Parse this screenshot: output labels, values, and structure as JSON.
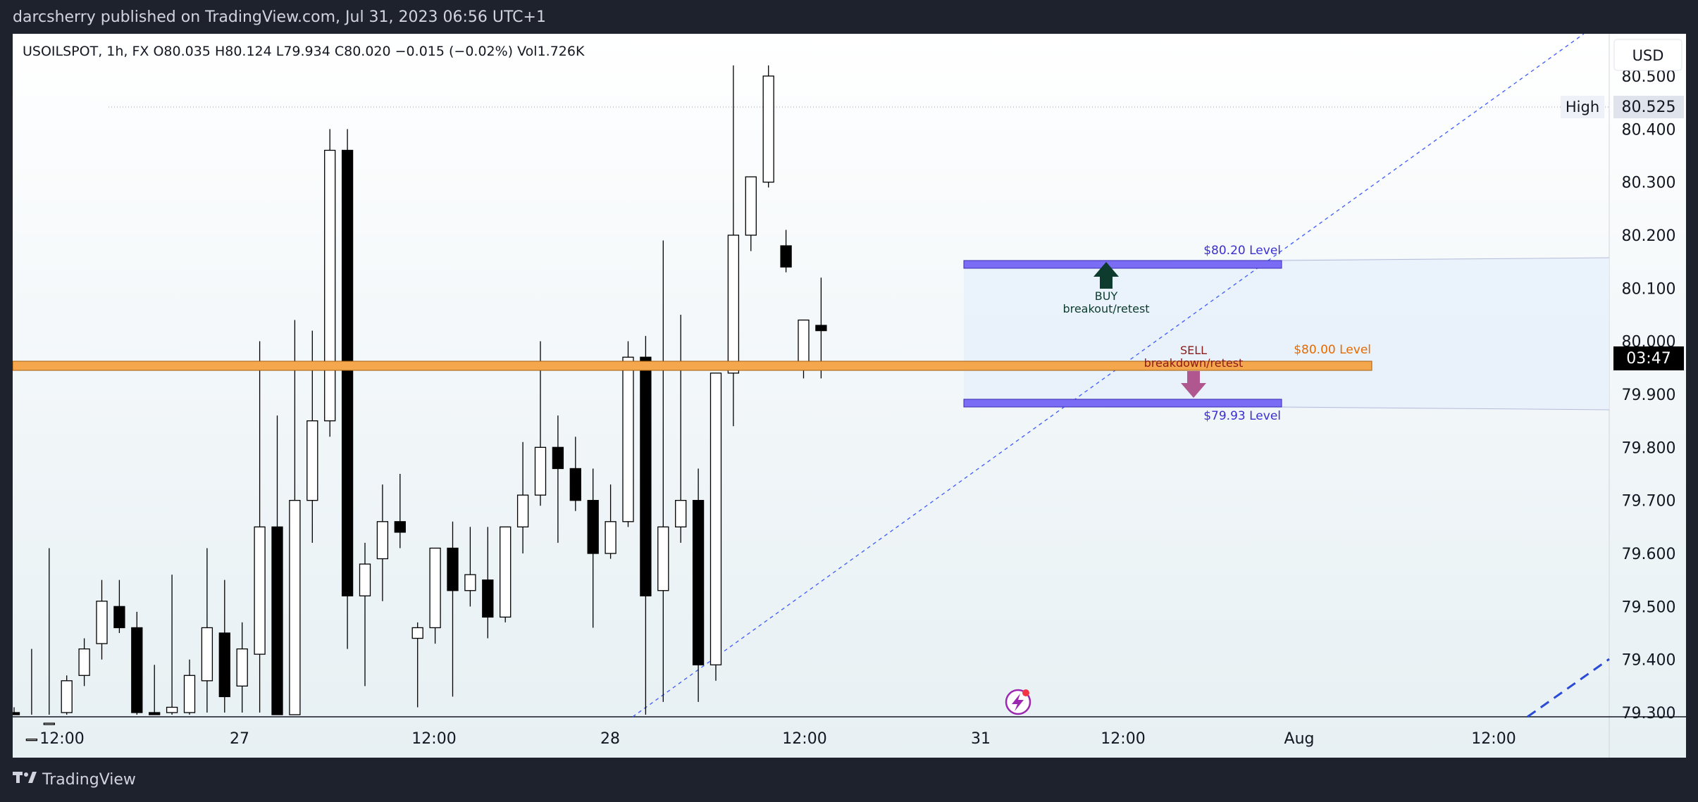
{
  "header": {
    "publisher": "darcsherry published on TradingView.com, Jul 31, 2023 06:56 UTC+1"
  },
  "legend": {
    "text": "USOILSPOT, 1h, FX  O80.035  H80.124  L79.934  C80.020  −0.015 (−0.02%)  Vol1.726K"
  },
  "currency_button": "USD",
  "footer": {
    "brand": "TradingView"
  },
  "badges": {
    "high_label": "High",
    "high_value": "80.525",
    "countdown": "03:47"
  },
  "annotations": {
    "level_8020": "$80.20 Level",
    "level_8000": "$80.00 Level",
    "level_7993": "$79.93 Level",
    "buy_title": "BUY",
    "buy_sub": "breakout/retest",
    "sell_title": "SELL",
    "sell_sub": "breakdown/retest"
  },
  "colors": {
    "bull": "#ffffff",
    "bear": "#000000",
    "level_band": "#7b6cf6",
    "orange_band": "#f5a623",
    "trend": "#3d5afe"
  },
  "icons": {
    "logo": "tradingview-logo-icon",
    "flash": "lightning-icon"
  },
  "chart_data": {
    "type": "candlestick",
    "symbol": "USOILSPOT",
    "interval": "1h",
    "ylim": [
      79.3,
      80.56
    ],
    "y_ticks": [
      "80.500",
      "80.400",
      "80.300",
      "80.200",
      "80.100",
      "80.000",
      "79.900",
      "79.800",
      "79.700",
      "79.600",
      "79.500",
      "79.400",
      "79.300"
    ],
    "x_ticks": [
      "12:00",
      "27",
      "12:00",
      "28",
      "12:00",
      "31",
      "12:00",
      "Aug",
      "12:00"
    ],
    "candles": [
      {
        "o": 79.3,
        "h": 79.31,
        "l": 79.28,
        "c": 79.28
      },
      {
        "o": 79.25,
        "h": 79.42,
        "l": 79.2,
        "c": 79.25
      },
      {
        "o": 79.25,
        "h": 79.61,
        "l": 79.2,
        "c": 79.28
      },
      {
        "o": 79.3,
        "h": 79.37,
        "l": 79.26,
        "c": 79.36
      },
      {
        "o": 79.37,
        "h": 79.44,
        "l": 79.35,
        "c": 79.42
      },
      {
        "o": 79.43,
        "h": 79.55,
        "l": 79.4,
        "c": 79.51
      },
      {
        "o": 79.5,
        "h": 79.55,
        "l": 79.45,
        "c": 79.46
      },
      {
        "o": 79.46,
        "h": 79.49,
        "l": 79.25,
        "c": 79.3
      },
      {
        "o": 79.3,
        "h": 79.39,
        "l": 79.24,
        "c": 79.29
      },
      {
        "o": 79.3,
        "h": 79.56,
        "l": 79.27,
        "c": 79.31
      },
      {
        "o": 79.3,
        "h": 79.4,
        "l": 79.28,
        "c": 79.37
      },
      {
        "o": 79.36,
        "h": 79.61,
        "l": 79.3,
        "c": 79.46
      },
      {
        "o": 79.45,
        "h": 79.55,
        "l": 79.3,
        "c": 79.33
      },
      {
        "o": 79.35,
        "h": 79.47,
        "l": 79.3,
        "c": 79.42
      },
      {
        "o": 79.41,
        "h": 80.0,
        "l": 79.3,
        "c": 79.65
      },
      {
        "o": 79.65,
        "h": 79.86,
        "l": 79.25,
        "c": 79.25
      },
      {
        "o": 79.25,
        "h": 80.04,
        "l": 79.25,
        "c": 79.7
      },
      {
        "o": 79.7,
        "h": 80.02,
        "l": 79.62,
        "c": 79.85
      },
      {
        "o": 79.85,
        "h": 80.4,
        "l": 79.82,
        "c": 80.36
      },
      {
        "o": 80.36,
        "h": 80.4,
        "l": 79.42,
        "c": 79.52
      },
      {
        "o": 79.52,
        "h": 79.62,
        "l": 79.35,
        "c": 79.58
      },
      {
        "o": 79.59,
        "h": 79.73,
        "l": 79.51,
        "c": 79.66
      },
      {
        "o": 79.66,
        "h": 79.75,
        "l": 79.61,
        "c": 79.64
      },
      {
        "o": 79.44,
        "h": 79.47,
        "l": 79.31,
        "c": 79.46
      },
      {
        "o": 79.46,
        "h": 79.61,
        "l": 79.43,
        "c": 79.61
      },
      {
        "o": 79.61,
        "h": 79.66,
        "l": 79.33,
        "c": 79.53
      },
      {
        "o": 79.53,
        "h": 79.65,
        "l": 79.5,
        "c": 79.56
      },
      {
        "o": 79.55,
        "h": 79.65,
        "l": 79.44,
        "c": 79.48
      },
      {
        "o": 79.48,
        "h": 79.65,
        "l": 79.47,
        "c": 79.65
      },
      {
        "o": 79.65,
        "h": 79.81,
        "l": 79.6,
        "c": 79.71
      },
      {
        "o": 79.71,
        "h": 80.0,
        "l": 79.69,
        "c": 79.8
      },
      {
        "o": 79.8,
        "h": 79.86,
        "l": 79.62,
        "c": 79.76
      },
      {
        "o": 79.76,
        "h": 79.82,
        "l": 79.68,
        "c": 79.7
      },
      {
        "o": 79.7,
        "h": 79.76,
        "l": 79.46,
        "c": 79.6
      },
      {
        "o": 79.6,
        "h": 79.73,
        "l": 79.59,
        "c": 79.66
      },
      {
        "o": 79.66,
        "h": 80.0,
        "l": 79.65,
        "c": 79.97
      },
      {
        "o": 79.97,
        "h": 80.01,
        "l": 79.22,
        "c": 79.52
      },
      {
        "o": 79.53,
        "h": 80.19,
        "l": 79.32,
        "c": 79.65
      },
      {
        "o": 79.65,
        "h": 80.05,
        "l": 79.62,
        "c": 79.7
      },
      {
        "o": 79.7,
        "h": 79.76,
        "l": 79.32,
        "c": 79.39
      },
      {
        "o": 79.39,
        "h": 79.94,
        "l": 79.36,
        "c": 79.94
      },
      {
        "o": 79.94,
        "h": 80.52,
        "l": 79.84,
        "c": 80.2
      },
      {
        "o": 80.2,
        "h": 80.31,
        "l": 80.17,
        "c": 80.31
      },
      {
        "o": 80.3,
        "h": 80.52,
        "l": 80.29,
        "c": 80.5
      },
      {
        "o": 80.18,
        "h": 80.21,
        "l": 80.13,
        "c": 80.14
      },
      {
        "o": 79.96,
        "h": 80.04,
        "l": 79.93,
        "c": 80.04
      },
      {
        "o": 80.03,
        "h": 80.12,
        "l": 79.93,
        "c": 80.02
      }
    ],
    "annotations": [
      {
        "label": "$80.20 Level",
        "price": 80.2
      },
      {
        "label": "$80.00 Level",
        "price": 80.0
      },
      {
        "label": "$79.93 Level",
        "price": 79.93
      }
    ]
  }
}
